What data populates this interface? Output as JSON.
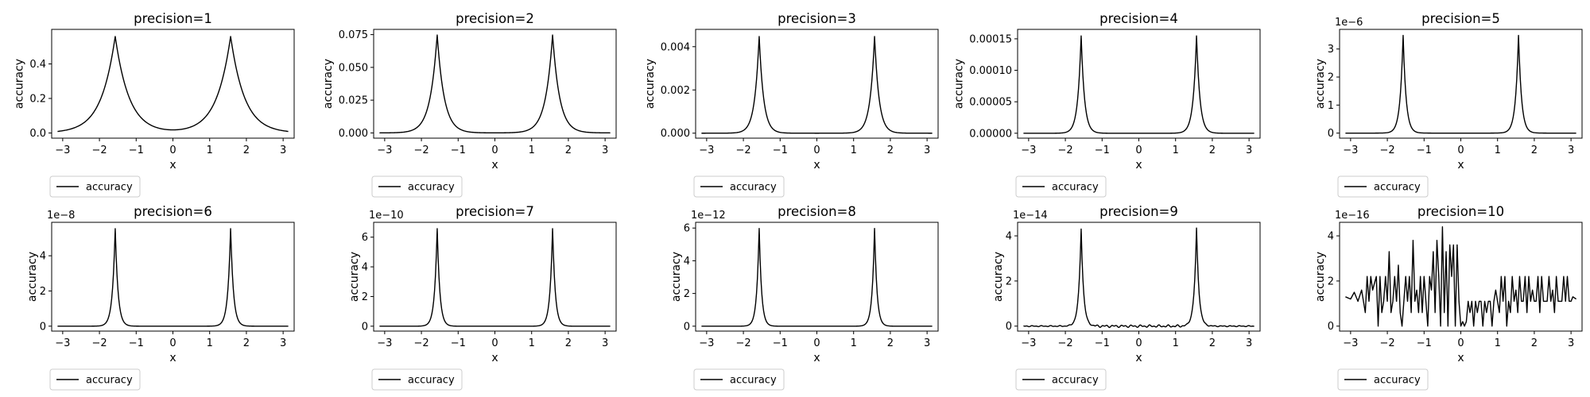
{
  "figure": {
    "background": "#ffffff",
    "line_color": "#000000",
    "legend_border": "#cccccc"
  },
  "chart_data": [
    {
      "type": "line",
      "title": "precision=1",
      "xlabel": "x",
      "ylabel": "accuracy",
      "xlim": [
        -3.3,
        3.3
      ],
      "xticks": [
        -3,
        -2,
        -1,
        0,
        1,
        2,
        3
      ],
      "xtick_labels": [
        "−3",
        "−2",
        "−1",
        "0",
        "1",
        "2",
        "3"
      ],
      "ylim": [
        -0.03,
        0.6
      ],
      "yticks": [
        0,
        0.2,
        0.4
      ],
      "ytick_labels": [
        "0.0",
        "0.2",
        "0.4"
      ],
      "offset_text": "",
      "legend": "accuracy",
      "legend_loc": "below-left",
      "series": [
        {
          "name": "accuracy",
          "x_range": [
            -3.14,
            3.14
          ],
          "peaks_at": [
            -1.5708,
            1.5708
          ],
          "peak_value": 0.56,
          "base_value": 0.0,
          "decay_width": 0.38,
          "profile": "exponential-cusp"
        }
      ]
    },
    {
      "type": "line",
      "title": "precision=2",
      "xlabel": "x",
      "ylabel": "accuracy",
      "xlim": [
        -3.3,
        3.3
      ],
      "xticks": [
        -3,
        -2,
        -1,
        0,
        1,
        2,
        3
      ],
      "xtick_labels": [
        "−3",
        "−2",
        "−1",
        "0",
        "1",
        "2",
        "3"
      ],
      "ylim": [
        -0.004,
        0.079
      ],
      "yticks": [
        0,
        0.025,
        0.05,
        0.075
      ],
      "ytick_labels": [
        "0.000",
        "0.025",
        "0.050",
        "0.075"
      ],
      "offset_text": "",
      "legend": "accuracy",
      "legend_loc": "below-left",
      "series": [
        {
          "name": "accuracy",
          "x_range": [
            -3.14,
            3.14
          ],
          "peaks_at": [
            -1.5708,
            1.5708
          ],
          "peak_value": 0.075,
          "base_value": 0.0,
          "decay_width": 0.19,
          "profile": "exponential-cusp"
        }
      ]
    },
    {
      "type": "line",
      "title": "precision=3",
      "xlabel": "x",
      "ylabel": "accuracy",
      "xlim": [
        -3.3,
        3.3
      ],
      "xticks": [
        -3,
        -2,
        -1,
        0,
        1,
        2,
        3
      ],
      "xtick_labels": [
        "−3",
        "−2",
        "−1",
        "0",
        "1",
        "2",
        "3"
      ],
      "ylim": [
        -0.00023,
        0.0048
      ],
      "yticks": [
        0,
        0.002,
        0.004
      ],
      "ytick_labels": [
        "0.000",
        "0.002",
        "0.004"
      ],
      "offset_text": "",
      "legend": "accuracy",
      "legend_loc": "below-left",
      "series": [
        {
          "name": "accuracy",
          "x_range": [
            -3.14,
            3.14
          ],
          "peaks_at": [
            -1.5708,
            1.5708
          ],
          "peak_value": 0.0045,
          "base_value": 0.0,
          "decay_width": 0.12,
          "profile": "exponential-cusp"
        }
      ]
    },
    {
      "type": "line",
      "title": "precision=4",
      "xlabel": "x",
      "ylabel": "accuracy",
      "xlim": [
        -3.3,
        3.3
      ],
      "xticks": [
        -3,
        -2,
        -1,
        0,
        1,
        2,
        3
      ],
      "xtick_labels": [
        "−3",
        "−2",
        "−1",
        "0",
        "1",
        "2",
        "3"
      ],
      "ylim": [
        -7.8e-06,
        0.000165
      ],
      "yticks": [
        0,
        5e-05,
        0.0001,
        0.00015
      ],
      "ytick_labels": [
        "0.00000",
        "0.00005",
        "0.00010",
        "0.00015"
      ],
      "offset_text": "",
      "legend": "accuracy",
      "legend_loc": "below-left",
      "series": [
        {
          "name": "accuracy",
          "x_range": [
            -3.14,
            3.14
          ],
          "peaks_at": [
            -1.5708,
            1.5708
          ],
          "peak_value": 0.000156,
          "base_value": 0.0,
          "decay_width": 0.09,
          "profile": "exponential-cusp"
        }
      ]
    },
    {
      "type": "line",
      "title": "precision=5",
      "xlabel": "x",
      "ylabel": "accuracy",
      "xlim": [
        -3.3,
        3.3
      ],
      "xticks": [
        -3,
        -2,
        -1,
        0,
        1,
        2,
        3
      ],
      "xtick_labels": [
        "−3",
        "−2",
        "−1",
        "0",
        "1",
        "2",
        "3"
      ],
      "ylim": [
        -0.18,
        3.7
      ],
      "yticks": [
        0,
        1,
        2,
        3
      ],
      "ytick_labels": [
        "0",
        "1",
        "2",
        "3"
      ],
      "offset_text": "1e−6",
      "legend": "accuracy",
      "legend_loc": "below-left",
      "series": [
        {
          "name": "accuracy",
          "x_range": [
            -3.14,
            3.14
          ],
          "peaks_at": [
            -1.5708,
            1.5708
          ],
          "peak_value": 3.52,
          "base_value": 0.0,
          "decay_width": 0.08,
          "profile": "exponential-cusp"
        }
      ]
    },
    {
      "type": "line",
      "title": "precision=6",
      "xlabel": "x",
      "ylabel": "accuracy",
      "xlim": [
        -3.3,
        3.3
      ],
      "xticks": [
        -3,
        -2,
        -1,
        0,
        1,
        2,
        3
      ],
      "xtick_labels": [
        "−3",
        "−2",
        "−1",
        "0",
        "1",
        "2",
        "3"
      ],
      "ylim": [
        -0.28,
        5.9
      ],
      "yticks": [
        0,
        2,
        4
      ],
      "ytick_labels": [
        "0",
        "2",
        "4"
      ],
      "offset_text": "1e−8",
      "legend": "accuracy",
      "legend_loc": "below-left",
      "series": [
        {
          "name": "accuracy",
          "x_range": [
            -3.14,
            3.14
          ],
          "peaks_at": [
            -1.5708,
            1.5708
          ],
          "peak_value": 5.6,
          "base_value": 0.0,
          "decay_width": 0.075,
          "profile": "exponential-cusp"
        }
      ]
    },
    {
      "type": "line",
      "title": "precision=7",
      "xlabel": "x",
      "ylabel": "accuracy",
      "xlim": [
        -3.3,
        3.3
      ],
      "xticks": [
        -3,
        -2,
        -1,
        0,
        1,
        2,
        3
      ],
      "xtick_labels": [
        "−3",
        "−2",
        "−1",
        "0",
        "1",
        "2",
        "3"
      ],
      "ylim": [
        -0.33,
        7.0
      ],
      "yticks": [
        0,
        2,
        4,
        6
      ],
      "ytick_labels": [
        "0",
        "2",
        "4",
        "6"
      ],
      "offset_text": "1e−10",
      "legend": "accuracy",
      "legend_loc": "below-left",
      "series": [
        {
          "name": "accuracy",
          "x_range": [
            -3.14,
            3.14
          ],
          "peaks_at": [
            -1.5708,
            1.5708
          ],
          "peak_value": 6.65,
          "base_value": 0.0,
          "decay_width": 0.07,
          "profile": "exponential-cusp"
        }
      ]
    },
    {
      "type": "line",
      "title": "precision=8",
      "xlabel": "x",
      "ylabel": "accuracy",
      "xlim": [
        -3.3,
        3.3
      ],
      "xticks": [
        -3,
        -2,
        -1,
        0,
        1,
        2,
        3
      ],
      "xtick_labels": [
        "−3",
        "−2",
        "−1",
        "0",
        "1",
        "2",
        "3"
      ],
      "ylim": [
        -0.3,
        6.35
      ],
      "yticks": [
        0,
        2,
        4,
        6
      ],
      "ytick_labels": [
        "0",
        "2",
        "4",
        "6"
      ],
      "offset_text": "1e−12",
      "legend": "accuracy",
      "legend_loc": "below-left",
      "series": [
        {
          "name": "accuracy",
          "x_range": [
            -3.14,
            3.14
          ],
          "peaks_at": [
            -1.5708,
            1.5708
          ],
          "peak_value": 6.05,
          "base_value": 0.0,
          "decay_width": 0.065,
          "profile": "exponential-cusp"
        }
      ]
    },
    {
      "type": "line",
      "title": "precision=9",
      "xlabel": "x",
      "ylabel": "accuracy",
      "xlim": [
        -3.3,
        3.3
      ],
      "xticks": [
        -3,
        -2,
        -1,
        0,
        1,
        2,
        3
      ],
      "xtick_labels": [
        "−3",
        "−2",
        "−1",
        "0",
        "1",
        "2",
        "3"
      ],
      "ylim": [
        -0.22,
        4.6
      ],
      "yticks": [
        0,
        2,
        4
      ],
      "ytick_labels": [
        "0",
        "2",
        "4"
      ],
      "offset_text": "1e−14",
      "legend": "accuracy",
      "legend_loc": "below-left",
      "series": [
        {
          "name": "accuracy",
          "x_range": [
            -3.14,
            3.14
          ],
          "peaks_at": [
            -1.5708,
            1.5708
          ],
          "peak_value": 4.38,
          "base_value": 0.0,
          "decay_width": 0.065,
          "profile": "exponential-cusp",
          "noise_amplitude": 0.06
        }
      ]
    },
    {
      "type": "line",
      "title": "precision=10",
      "xlabel": "x",
      "ylabel": "accuracy",
      "xlim": [
        -3.3,
        3.3
      ],
      "xticks": [
        -3,
        -2,
        -1,
        0,
        1,
        2,
        3
      ],
      "xtick_labels": [
        "−3",
        "−2",
        "−1",
        "0",
        "1",
        "2",
        "3"
      ],
      "ylim": [
        -0.22,
        4.6
      ],
      "yticks": [
        0,
        2,
        4
      ],
      "ytick_labels": [
        "0",
        "2",
        "4"
      ],
      "offset_text": "1e−16",
      "legend": "accuracy",
      "legend_loc": "below-left",
      "series": [
        {
          "name": "accuracy",
          "profile": "noise",
          "x": [
            -3.14,
            -3.0,
            -2.9,
            -2.8,
            -2.7,
            -2.6,
            -2.55,
            -2.5,
            -2.45,
            -2.4,
            -2.3,
            -2.25,
            -2.2,
            -2.15,
            -2.1,
            -2.05,
            -2.0,
            -1.95,
            -1.9,
            -1.85,
            -1.8,
            -1.75,
            -1.7,
            -1.65,
            -1.6,
            -1.55,
            -1.5,
            -1.45,
            -1.4,
            -1.35,
            -1.3,
            -1.25,
            -1.2,
            -1.15,
            -1.1,
            -1.05,
            -1.0,
            -0.95,
            -0.9,
            -0.85,
            -0.8,
            -0.75,
            -0.7,
            -0.65,
            -0.6,
            -0.55,
            -0.5,
            -0.45,
            -0.4,
            -0.35,
            -0.3,
            -0.25,
            -0.2,
            -0.15,
            -0.1,
            -0.05,
            0.0,
            0.05,
            0.1,
            0.15,
            0.2,
            0.25,
            0.3,
            0.35,
            0.4,
            0.45,
            0.5,
            0.55,
            0.6,
            0.65,
            0.7,
            0.75,
            0.8,
            0.85,
            0.9,
            0.95,
            1.0,
            1.05,
            1.1,
            1.15,
            1.2,
            1.25,
            1.3,
            1.35,
            1.4,
            1.45,
            1.5,
            1.55,
            1.6,
            1.65,
            1.7,
            1.75,
            1.8,
            1.85,
            1.9,
            1.95,
            2.0,
            2.05,
            2.1,
            2.15,
            2.2,
            2.25,
            2.3,
            2.35,
            2.4,
            2.45,
            2.5,
            2.55,
            2.6,
            2.65,
            2.7,
            2.75,
            2.8,
            2.85,
            2.9,
            2.95,
            3.0,
            3.05,
            3.14
          ],
          "y": [
            1.3,
            1.2,
            1.5,
            1.1,
            1.6,
            0.6,
            2.2,
            1.1,
            2.2,
            1.6,
            2.2,
            0.0,
            2.2,
            0.6,
            1.1,
            2.2,
            1.1,
            3.3,
            0.6,
            1.1,
            2.2,
            1.1,
            2.7,
            0.6,
            0.0,
            1.1,
            2.2,
            1.1,
            2.2,
            0.6,
            3.8,
            1.1,
            1.6,
            0.6,
            2.2,
            0.6,
            2.2,
            1.1,
            0.0,
            2.2,
            1.6,
            3.3,
            0.6,
            3.8,
            2.2,
            0.0,
            4.4,
            0.6,
            3.3,
            0.0,
            3.6,
            2.2,
            3.6,
            0.0,
            3.6,
            1.1,
            0.0,
            0.2,
            0.0,
            0.2,
            1.1,
            0.6,
            1.1,
            0.0,
            1.1,
            0.6,
            1.1,
            1.1,
            0.0,
            1.1,
            0.6,
            1.1,
            1.1,
            0.0,
            1.1,
            1.6,
            1.1,
            0.6,
            2.2,
            1.1,
            2.2,
            0.0,
            1.1,
            0.6,
            2.2,
            1.1,
            1.6,
            0.6,
            2.2,
            1.1,
            1.1,
            2.2,
            0.6,
            2.2,
            1.1,
            1.6,
            1.1,
            1.1,
            2.2,
            0.6,
            2.2,
            1.1,
            1.1,
            1.1,
            2.2,
            1.1,
            1.6,
            0.6,
            2.2,
            1.1,
            1.1,
            1.1,
            2.2,
            1.1,
            2.2,
            1.1,
            1.1,
            1.3,
            1.2
          ]
        }
      ]
    }
  ]
}
